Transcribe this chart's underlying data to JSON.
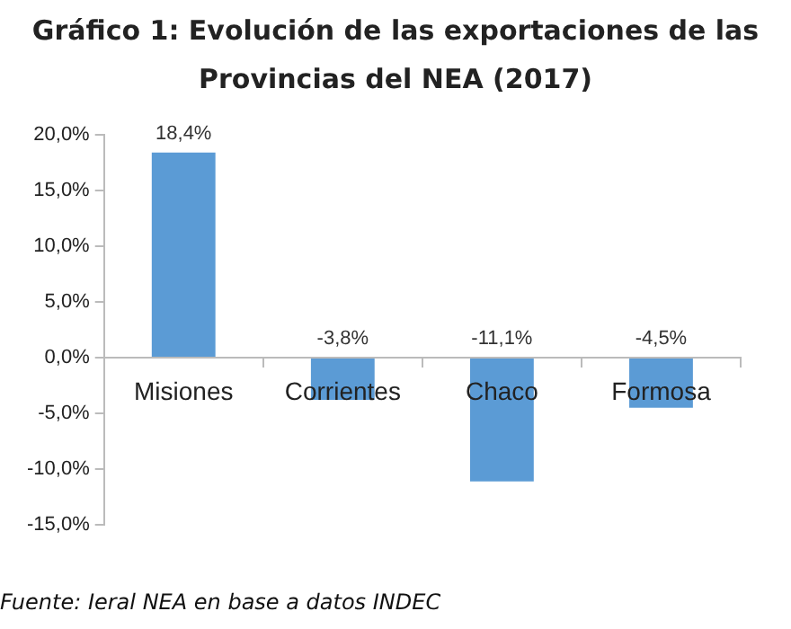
{
  "chart_data": {
    "type": "bar",
    "title": "Gráfico 1: Evolución de las exportaciones de las Provincias del NEA (2017)",
    "categories": [
      "Misiones",
      "Corrientes",
      "Chaco",
      "Formosa"
    ],
    "values": [
      18.4,
      -3.8,
      -11.1,
      -4.5
    ],
    "value_labels": [
      "18,4%",
      "-3,8%",
      "-11,1%",
      "-4,5%"
    ],
    "color": "#5b9bd5",
    "ylim": [
      -15,
      20
    ],
    "yticks": [
      {
        "value": 20,
        "label": "20,0%"
      },
      {
        "value": 15,
        "label": "15,0%"
      },
      {
        "value": 10,
        "label": "10,0%"
      },
      {
        "value": 5,
        "label": "5,0%"
      },
      {
        "value": 0,
        "label": "0,0%"
      },
      {
        "value": -5,
        "label": "-5,0%"
      },
      {
        "value": -10,
        "label": "-10,0%"
      },
      {
        "value": -15,
        "label": "-15,0%"
      }
    ],
    "grid": false,
    "legend": false,
    "annotations": [
      "Fuente: Ieral NEA en base a datos INDEC"
    ]
  }
}
